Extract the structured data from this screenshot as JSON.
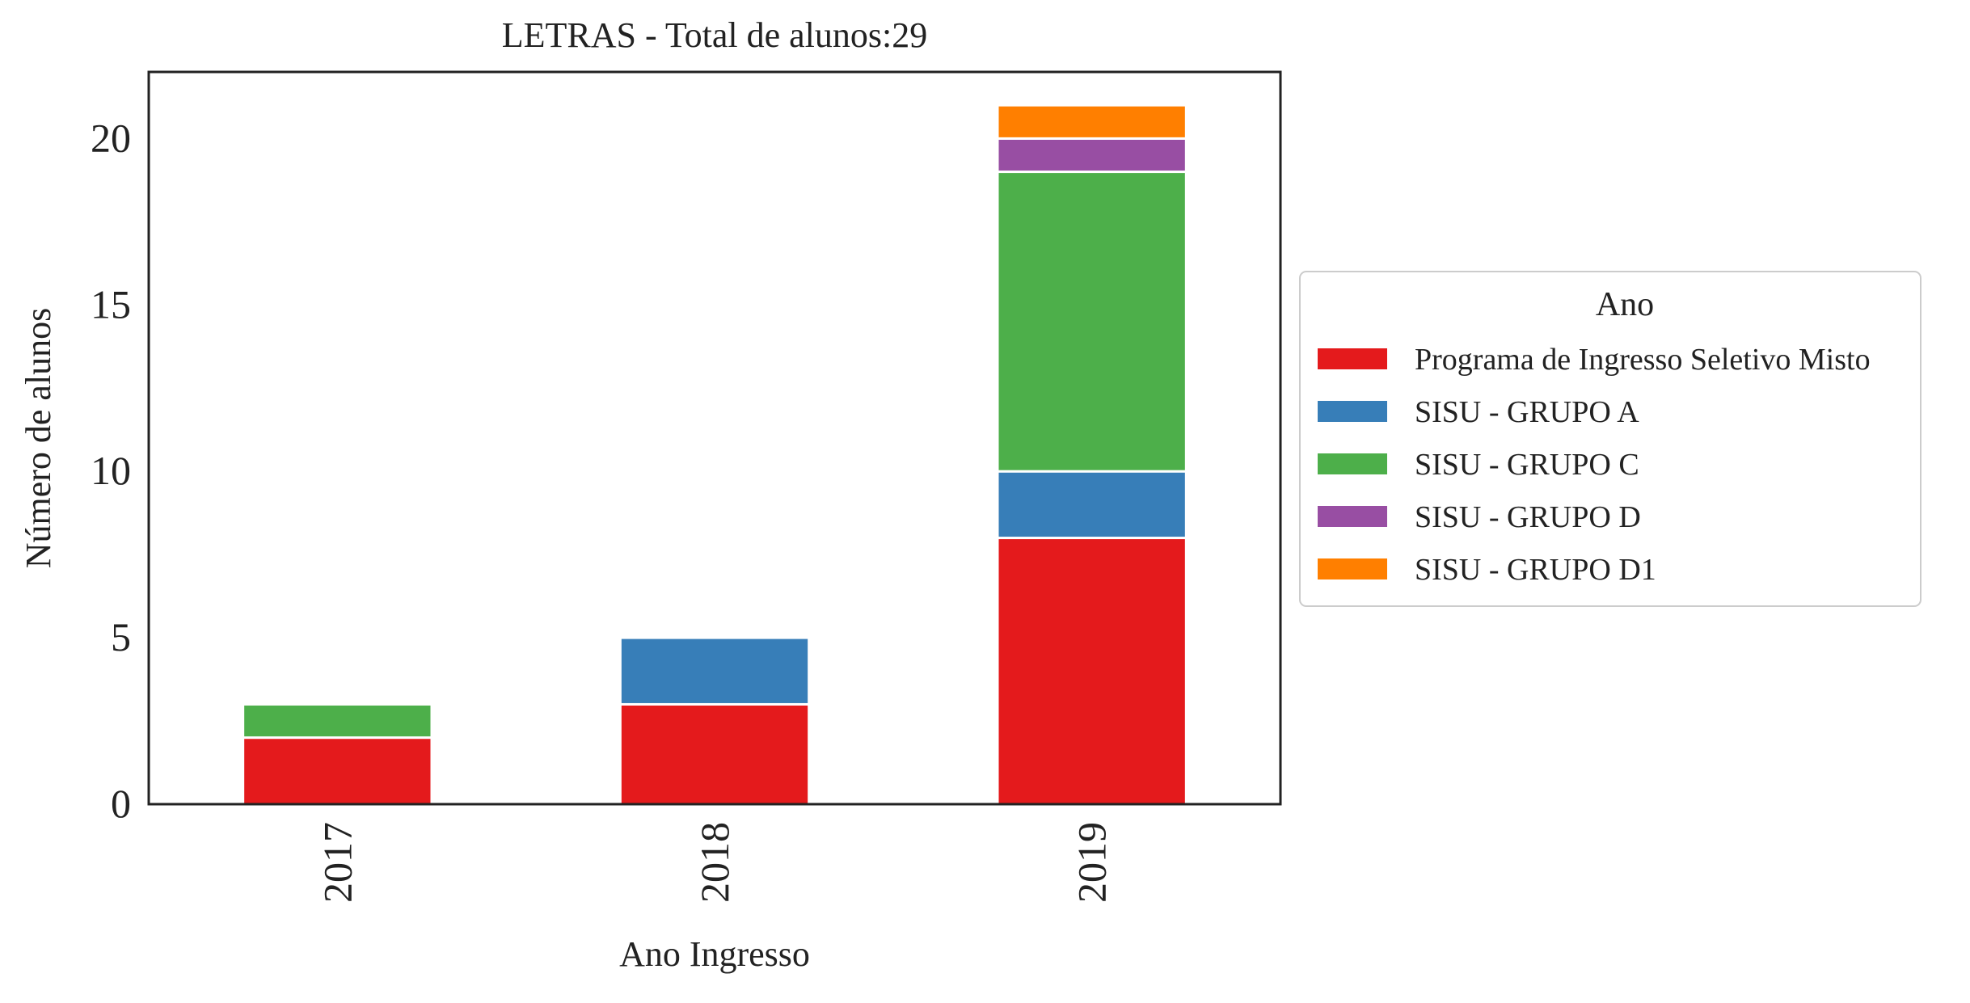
{
  "chart_data": {
    "type": "bar",
    "stacked": true,
    "title": "LETRAS - Total de alunos:29",
    "xlabel": "Ano Ingresso",
    "ylabel": "Número de alunos",
    "categories": [
      "2017",
      "2018",
      "2019"
    ],
    "series": [
      {
        "name": "Programa de Ingresso Seletivo Misto",
        "color": "#e41a1c",
        "values": [
          2,
          3,
          8
        ]
      },
      {
        "name": "SISU - GRUPO A",
        "color": "#377eb8",
        "values": [
          0,
          2,
          2
        ]
      },
      {
        "name": "SISU - GRUPO C",
        "color": "#4daf4a",
        "values": [
          1,
          0,
          9
        ]
      },
      {
        "name": "SISU - GRUPO D",
        "color": "#984ea3",
        "values": [
          0,
          0,
          1
        ]
      },
      {
        "name": "SISU - GRUPO D1",
        "color": "#ff7f00",
        "values": [
          0,
          0,
          1
        ]
      }
    ],
    "ylim": [
      0,
      22
    ],
    "yticks": [
      0,
      5,
      10,
      15,
      20
    ],
    "grid": false,
    "legend": {
      "title": "Ano",
      "placement": "center-right, outside plot"
    }
  }
}
